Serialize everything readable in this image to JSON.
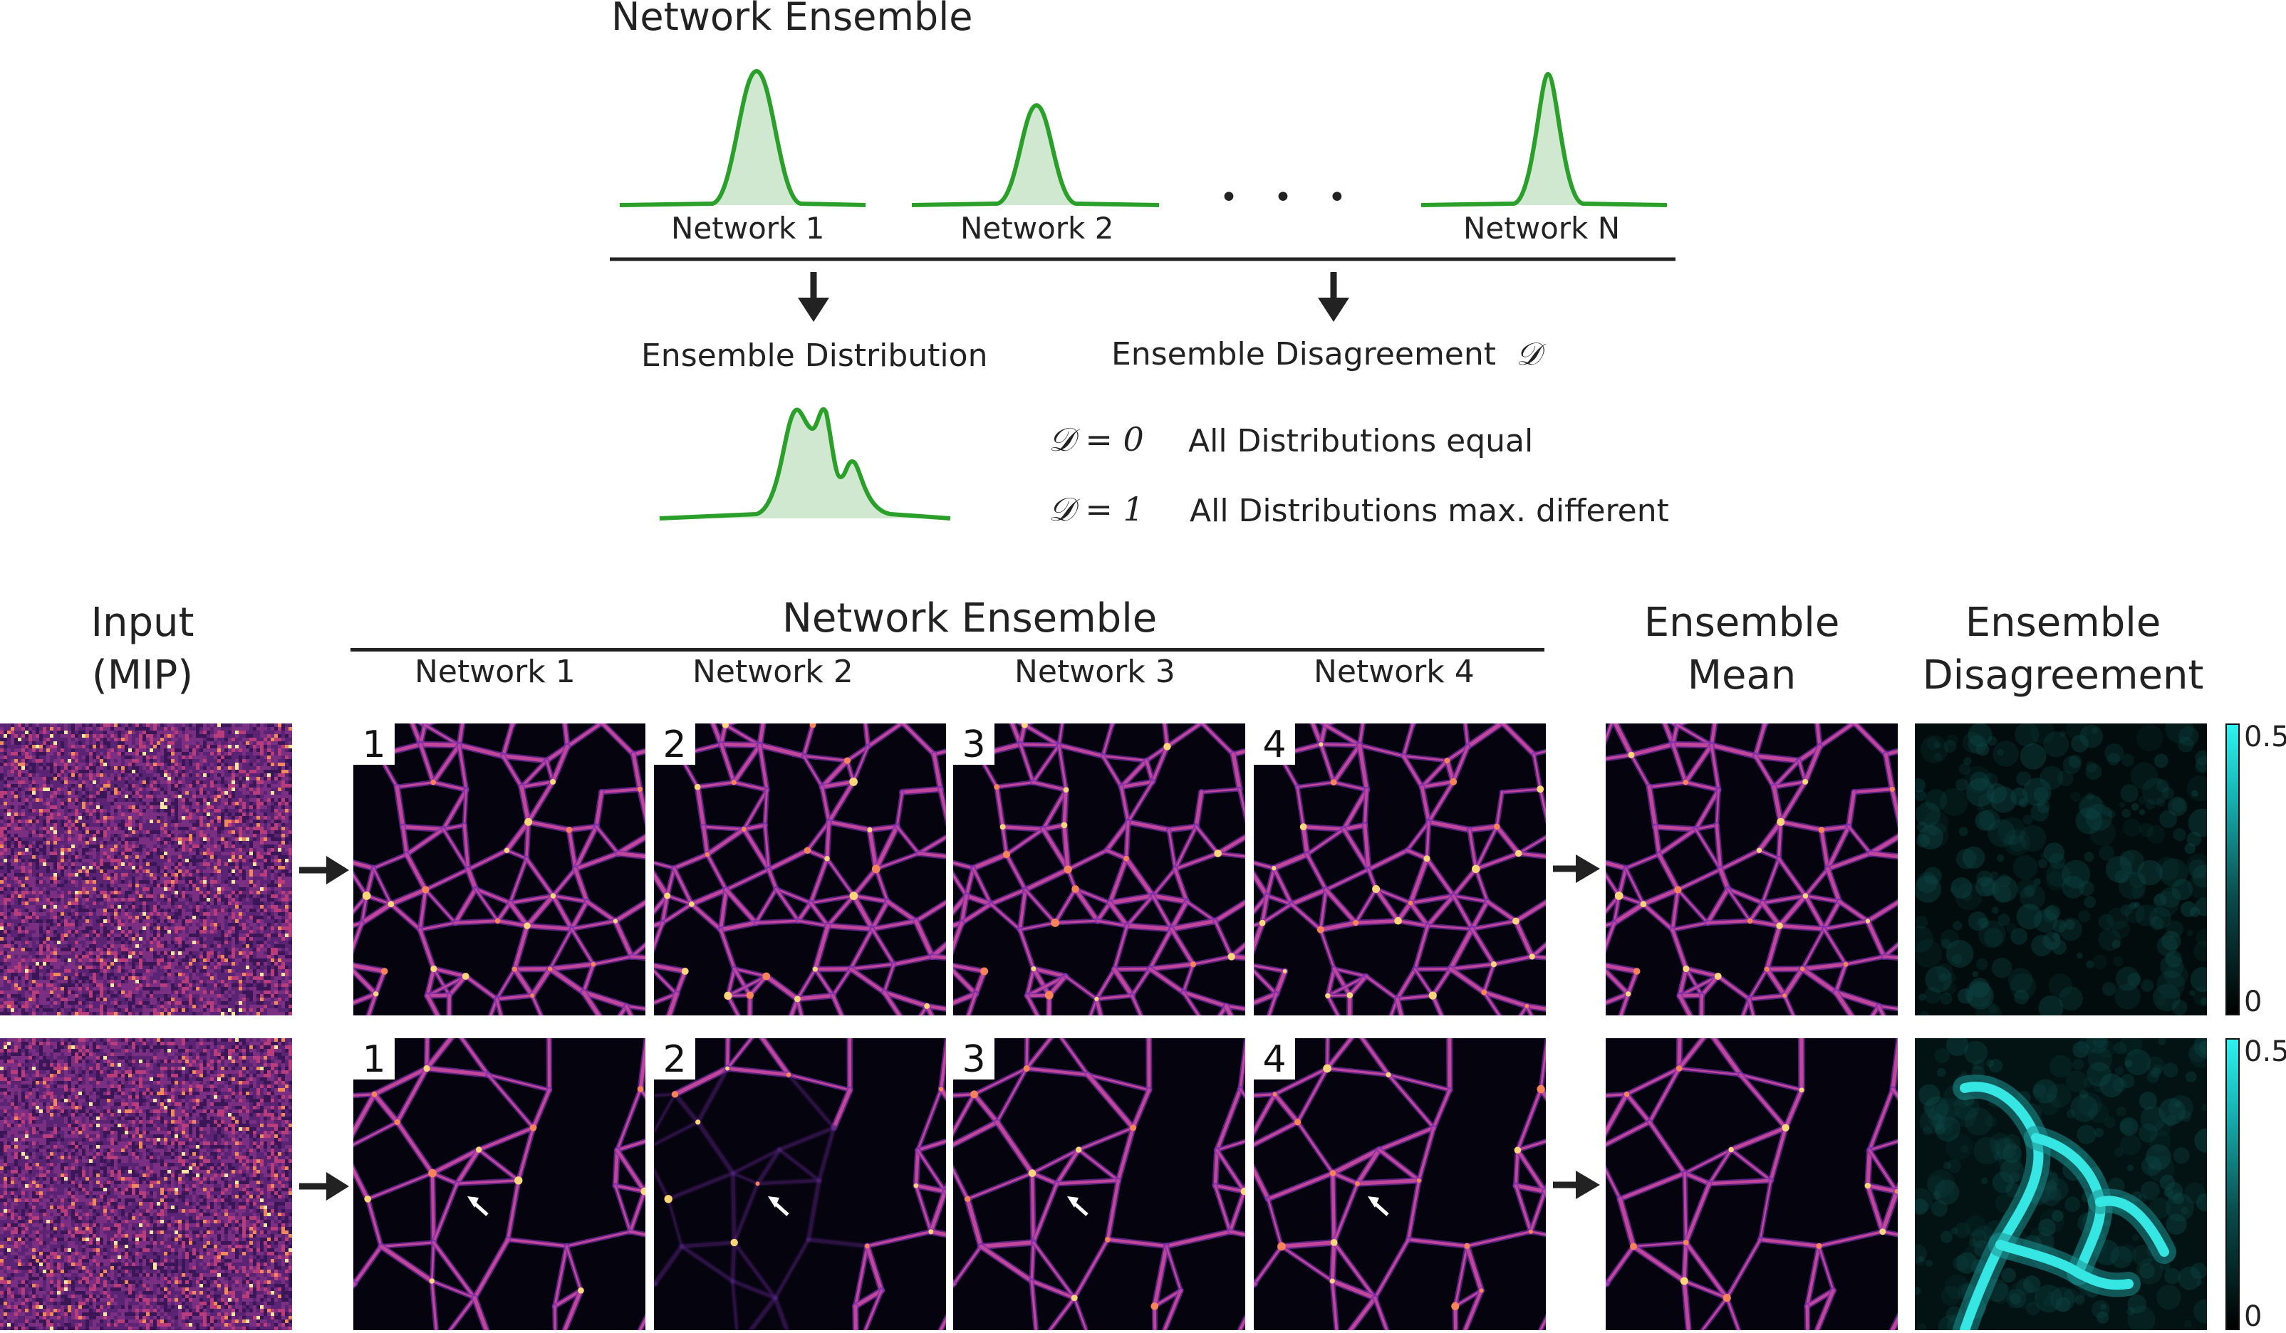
{
  "top": {
    "title": "Network Ensemble",
    "networks": [
      "Network 1",
      "Network 2",
      "Network N"
    ],
    "ellipsis": "• • •",
    "ensemble_distribution": "Ensemble Distribution",
    "ensemble_disagreement": "Ensemble Disagreement",
    "disagreement_symbol": "𝒟",
    "eq0": "𝒟 = 0",
    "eq0_text": "All Distributions equal",
    "eq1": "𝒟 = 1",
    "eq1_text": "All Distributions max. different",
    "curve_color": "#2aa02a",
    "fill_color": "#cfe8cf"
  },
  "bottom": {
    "input_label": "Input\n(MIP)",
    "ensemble_header": "Network Ensemble",
    "network_cols": [
      "Network 1",
      "Network 2",
      "Network 3",
      "Network 4"
    ],
    "mean_label": "Ensemble\nMean",
    "disagreement_label": "Ensemble\nDisagreement",
    "badges": [
      "1",
      "2",
      "3",
      "4"
    ],
    "colorbar": {
      "max": "0.5",
      "min": "0"
    }
  }
}
